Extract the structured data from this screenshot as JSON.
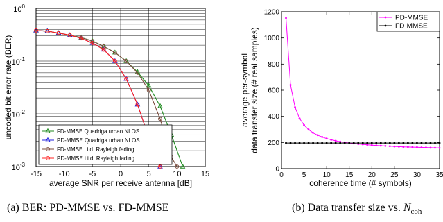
{
  "chart_data": [
    {
      "type": "line",
      "xlabel": "average SNR per receive antenna [dB]",
      "ylabel": "uncoded bit error rate (BER)",
      "xlim": [
        -15,
        15
      ],
      "ylim": [
        0.001,
        1
      ],
      "yscale": "log",
      "xticks": [
        -15,
        -10,
        -5,
        0,
        5,
        10,
        15
      ],
      "xtick_labels": [
        "-15",
        "-10",
        "-5",
        "0",
        "5",
        "10",
        "15"
      ],
      "yticks": [
        0.001,
        0.01,
        0.1,
        1
      ],
      "ytick_labels": [
        {
          "base": "10",
          "exp": "-3"
        },
        {
          "base": "10",
          "exp": "-2"
        },
        {
          "base": "10",
          "exp": "-1"
        },
        {
          "base": "10",
          "exp": "0"
        }
      ],
      "grid": true,
      "legend_position": "bottom-left",
      "series": [
        {
          "name": "FD-MMSE Quadriga urban NLOS",
          "color": "#1f8a1f",
          "marker": "triangle",
          "x": [
            -15,
            -13,
            -11,
            -9,
            -7,
            -5,
            -3,
            -1,
            1,
            3,
            5,
            7,
            9,
            11
          ],
          "y": [
            0.38,
            0.37,
            0.34,
            0.31,
            0.28,
            0.24,
            0.19,
            0.145,
            0.1,
            0.062,
            0.034,
            0.014,
            0.004,
            0.001
          ]
        },
        {
          "name": "PD-MMSE Quadriga urban NLOS",
          "color": "#2222dd",
          "marker": "triangle",
          "x": [
            -15,
            -13,
            -11,
            -9,
            -7,
            -5,
            -3,
            -1,
            1,
            3,
            5,
            7
          ],
          "y": [
            0.38,
            0.37,
            0.34,
            0.31,
            0.27,
            0.22,
            0.165,
            0.1,
            0.046,
            0.015,
            0.0035,
            0.001
          ]
        },
        {
          "name": "FD-MMSE i.i.d. Rayleigh fading",
          "color": "#7a4a3a",
          "marker": "circle",
          "x": [
            -15,
            -13,
            -11,
            -9,
            -7,
            -5,
            -3,
            -1,
            1,
            3,
            5,
            7,
            9,
            10
          ],
          "y": [
            0.38,
            0.37,
            0.34,
            0.31,
            0.28,
            0.24,
            0.19,
            0.145,
            0.1,
            0.06,
            0.028,
            0.008,
            0.0015,
            0.001
          ]
        },
        {
          "name": "PD-MMSE i.i.d. Rayleigh fading",
          "color": "#ff2020",
          "marker": "circle",
          "x": [
            -15,
            -13,
            -11,
            -9,
            -7,
            -5,
            -3,
            -1,
            1,
            3,
            5,
            7
          ],
          "y": [
            0.38,
            0.37,
            0.34,
            0.31,
            0.27,
            0.22,
            0.165,
            0.1,
            0.046,
            0.015,
            0.0035,
            0.001
          ]
        }
      ]
    },
    {
      "type": "line",
      "xlabel": "coherence time (# symbols)",
      "ylabel_lines": [
        "average per-symbol",
        "data transfer size (# real samples)"
      ],
      "xlim": [
        0,
        35
      ],
      "ylim": [
        0,
        1200
      ],
      "xticks": [
        0,
        5,
        10,
        15,
        20,
        25,
        30,
        35
      ],
      "yticks": [
        0,
        200,
        400,
        600,
        800,
        1000,
        1200
      ],
      "grid": false,
      "legend_position": "top-right",
      "series": [
        {
          "name": "PD-MMSE",
          "color": "#ff00ff",
          "marker": "point",
          "x": [
            1,
            2,
            3,
            4,
            5,
            6,
            7,
            8,
            9,
            10,
            11,
            12,
            13,
            14,
            15,
            16,
            17,
            18,
            19,
            20,
            21,
            22,
            23,
            24,
            25,
            26,
            27,
            28,
            29,
            30,
            31,
            32,
            33,
            34,
            35
          ],
          "y": [
            1152,
            640,
            470,
            384,
            333,
            299,
            274,
            256,
            242,
            230,
            221,
            213,
            206,
            201,
            196,
            192,
            188,
            185,
            182,
            179,
            177,
            175,
            173,
            171,
            169,
            168,
            166,
            165,
            164,
            163,
            162,
            161,
            160,
            159,
            158
          ]
        },
        {
          "name": "FD-MMSE",
          "color": "#000000",
          "marker": "point",
          "x": [
            1,
            2,
            3,
            4,
            5,
            6,
            7,
            8,
            9,
            10,
            11,
            12,
            13,
            14,
            15,
            16,
            17,
            18,
            19,
            20,
            21,
            22,
            23,
            24,
            25,
            26,
            27,
            28,
            29,
            30,
            31,
            32,
            33,
            34,
            35
          ],
          "y": [
            196,
            196,
            196,
            196,
            196,
            196,
            196,
            196,
            196,
            196,
            196,
            196,
            196,
            196,
            196,
            196,
            196,
            196,
            196,
            196,
            196,
            196,
            196,
            196,
            196,
            196,
            196,
            196,
            196,
            196,
            196,
            196,
            196,
            196,
            196
          ]
        }
      ]
    }
  ],
  "captions": [
    {
      "label": "(a)",
      "text": "BER: PD-MMSE vs. FD-MMSE"
    },
    {
      "label": "(b)",
      "text": "Data transfer size vs.",
      "symbol": "N",
      "subscript": "coh"
    }
  ]
}
